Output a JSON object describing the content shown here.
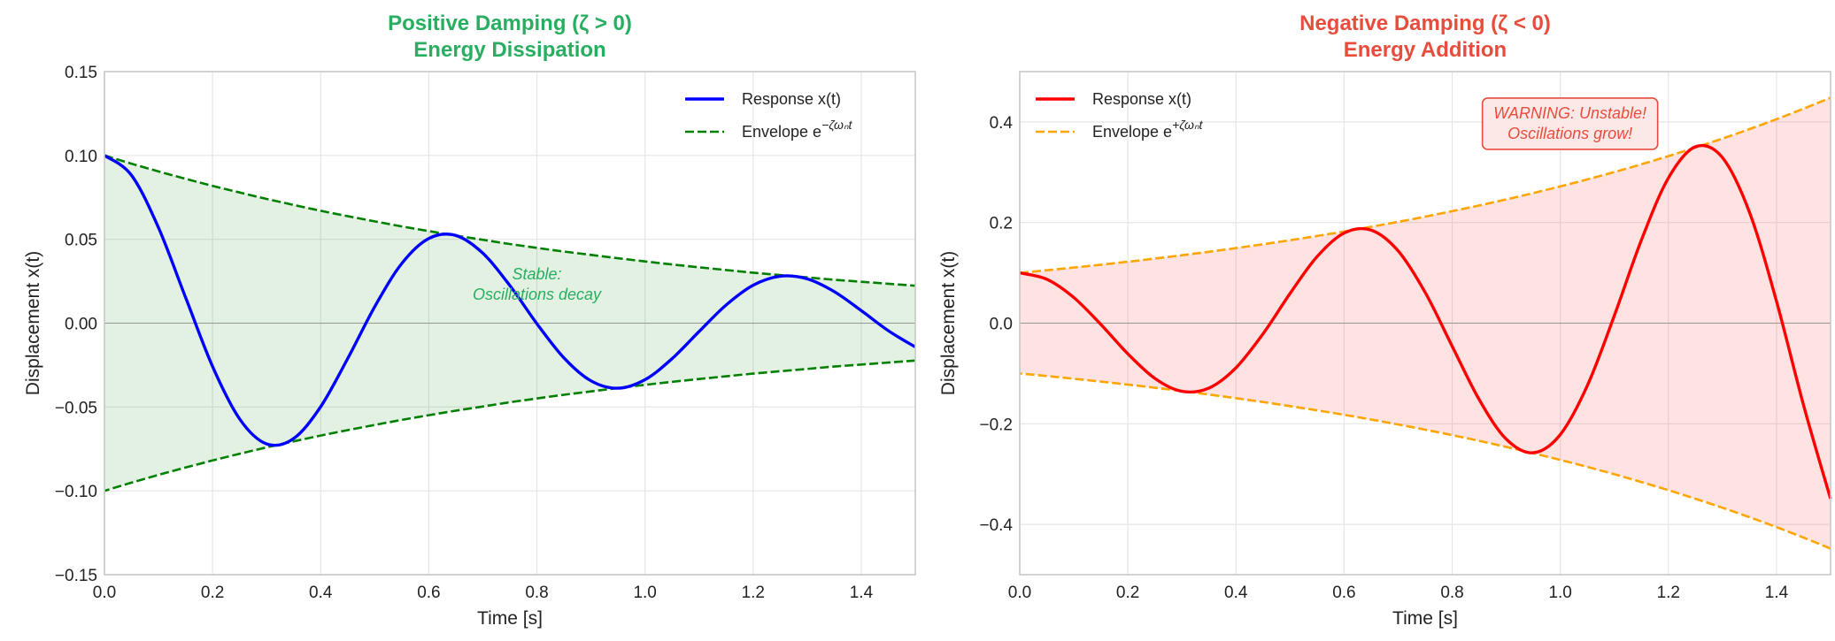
{
  "chart_data": [
    {
      "type": "line",
      "title": [
        "Positive Damping (ζ > 0)",
        "Energy Dissipation"
      ],
      "title_color": "#27ae60",
      "xlabel": "Time [s]",
      "ylabel": "Displacement x(t)",
      "xlim": [
        0,
        1.5
      ],
      "ylim": [
        -0.15,
        0.15
      ],
      "xticks": [
        "0.0",
        "0.2",
        "0.4",
        "0.6",
        "0.8",
        "1.0",
        "1.2",
        "1.4"
      ],
      "yticks": [
        "−0.15",
        "−0.10",
        "−0.05",
        "0.00",
        "0.05",
        "0.10",
        "0.15"
      ],
      "grid": true,
      "legend_position": "top-right",
      "fill_color": "#008000",
      "x": [
        0,
        0.05,
        0.1,
        0.15,
        0.2,
        0.25,
        0.3,
        0.35,
        0.4,
        0.45,
        0.5,
        0.55,
        0.6,
        0.65,
        0.7,
        0.75,
        0.8,
        0.85,
        0.9,
        0.95,
        1.0,
        1.05,
        1.1,
        1.15,
        1.2,
        1.25,
        1.3,
        1.35,
        1.4,
        1.45,
        1.5
      ],
      "series": [
        {
          "name": "Response x(t)",
          "color": "#0000ff",
          "style": "solid",
          "values": [
            0.1,
            0.0882,
            0.0569,
            0.0154,
            -0.0258,
            -0.0571,
            -0.072,
            -0.0688,
            -0.0498,
            -0.0211,
            0.0098,
            0.0356,
            0.0505,
            0.0523,
            0.0417,
            0.0224,
            -0.0003,
            -0.0207,
            -0.0344,
            -0.0388,
            -0.0337,
            -0.0212,
            -0.005,
            0.0108,
            0.0226,
            0.028,
            0.0264,
            0.0188,
            0.0075,
            -0.0045,
            -0.0142
          ]
        },
        {
          "name": "Envelope e",
          "exponent": "−ζωₙt",
          "color": "#008000",
          "style": "dashed",
          "values": [
            0.1,
            0.0951,
            0.0905,
            0.0861,
            0.0819,
            0.0779,
            0.0741,
            0.0705,
            0.067,
            0.0638,
            0.0607,
            0.0577,
            0.0549,
            0.0522,
            0.0497,
            0.0472,
            0.0449,
            0.0427,
            0.0407,
            0.0387,
            0.0368,
            0.035,
            0.0333,
            0.0317,
            0.0301,
            0.0287,
            0.0273,
            0.0259,
            0.0247,
            0.0235,
            0.0223
          ]
        }
      ],
      "mirror_envelope": true,
      "annotation": {
        "lines": [
          "Stable:",
          "Oscillations decay"
        ],
        "x": 0.8,
        "y": 0.025,
        "color": "#27ae60"
      }
    },
    {
      "type": "line",
      "title": [
        "Negative Damping (ζ < 0)",
        "Energy Addition"
      ],
      "title_color": "#e74c3c",
      "xlabel": "Time [s]",
      "ylabel": "Displacement x(t)",
      "xlim": [
        0,
        1.5
      ],
      "ylim": [
        -0.5,
        0.5
      ],
      "xticks": [
        "0.0",
        "0.2",
        "0.4",
        "0.6",
        "0.8",
        "1.0",
        "1.2",
        "1.4"
      ],
      "yticks": [
        "−0.4",
        "−0.2",
        "0.0",
        "0.2",
        "0.4"
      ],
      "grid": true,
      "legend_position": "top-left",
      "fill_color": "#ff0000",
      "x": [
        0,
        0.05,
        0.1,
        0.15,
        0.2,
        0.25,
        0.3,
        0.35,
        0.4,
        0.45,
        0.5,
        0.55,
        0.6,
        0.65,
        0.7,
        0.75,
        0.8,
        0.85,
        0.9,
        0.95,
        1.0,
        1.05,
        1.1,
        1.15,
        1.2,
        1.25,
        1.3,
        1.35,
        1.4,
        1.45,
        1.5
      ],
      "series": [
        {
          "name": "Response x(t)",
          "color": "#ff0000",
          "style": "solid",
          "values": [
            0.1,
            0.0873,
            0.0509,
            -0.0025,
            -0.0609,
            -0.1098,
            -0.1355,
            -0.129,
            -0.0886,
            -0.0212,
            0.0588,
            0.1321,
            0.179,
            0.1848,
            0.1436,
            0.0611,
            -0.0458,
            -0.1521,
            -0.2305,
            -0.2577,
            -0.2215,
            -0.1242,
            0.015,
            0.1652,
            0.2886,
            0.3506,
            0.329,
            0.2203,
            0.0436,
            -0.1631,
            -0.3492
          ]
        },
        {
          "name": "Envelope e",
          "exponent": "+ζωₙt",
          "color": "#ffa500",
          "style": "dashed",
          "values": [
            0.1,
            0.1051,
            0.1105,
            0.1162,
            0.1221,
            0.1284,
            0.135,
            0.1419,
            0.1492,
            0.1568,
            0.1649,
            0.1733,
            0.1822,
            0.1916,
            0.2014,
            0.2117,
            0.2226,
            0.234,
            0.246,
            0.2586,
            0.2718,
            0.2858,
            0.3004,
            0.3158,
            0.332,
            0.349,
            0.3669,
            0.3857,
            0.4055,
            0.4263,
            0.4482
          ]
        }
      ],
      "mirror_envelope": true,
      "annotation": {
        "lines": [
          "WARNING: Unstable!",
          "Oscillations grow!"
        ],
        "x": 1.0,
        "y": 0.37,
        "color": "#e74c3c",
        "boxed": true
      }
    }
  ]
}
